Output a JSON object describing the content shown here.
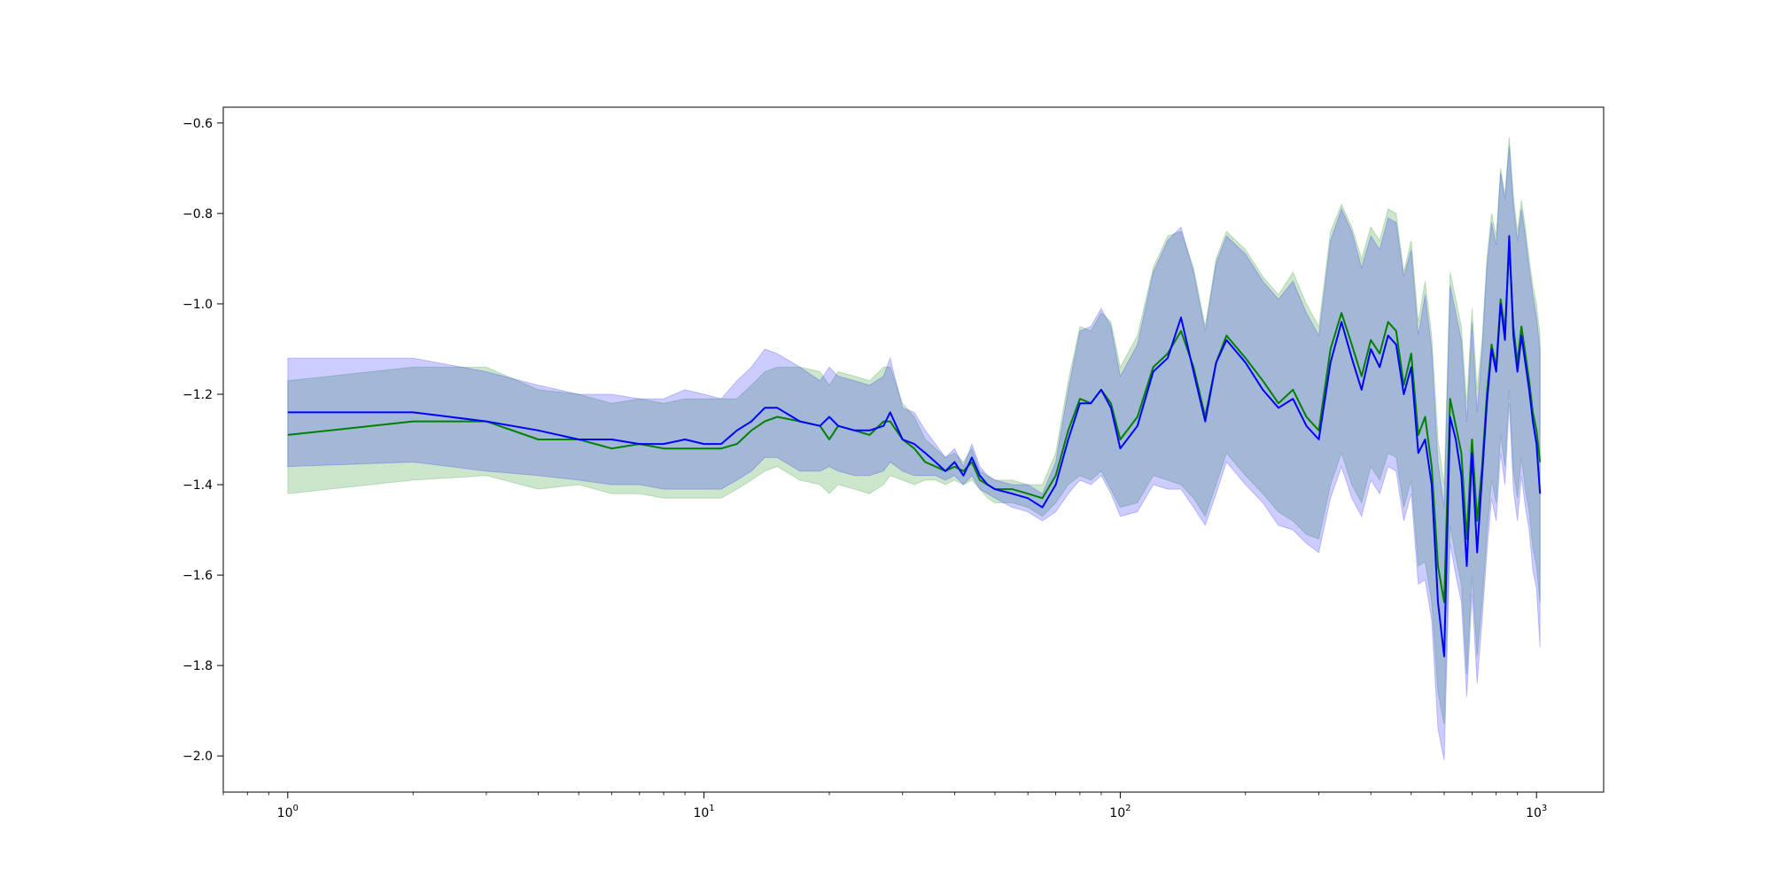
{
  "colors": {
    "series_green": "#008000",
    "series_blue": "#0000ff",
    "band_green": "rgba(0,128,0,0.2)",
    "band_blue": "rgba(0,0,255,0.2)",
    "axes": "#000000",
    "background": "#ffffff"
  },
  "chart_data": {
    "type": "line",
    "title": "",
    "xlabel": "",
    "ylabel": "",
    "xscale": "log",
    "xlim": [
      0.7,
      1450
    ],
    "ylim": [
      -2.08,
      -0.565
    ],
    "grid": false,
    "legend": "none",
    "xticks": [
      {
        "value": 1,
        "base": "10",
        "exp": "0"
      },
      {
        "value": 10,
        "base": "10",
        "exp": "1"
      },
      {
        "value": 100,
        "base": "10",
        "exp": "2"
      },
      {
        "value": 1000,
        "base": "10",
        "exp": "3"
      }
    ],
    "yticks": [
      {
        "value": -0.6,
        "label": "−0.6"
      },
      {
        "value": -0.8,
        "label": "−0.8"
      },
      {
        "value": -1.0,
        "label": "−1.0"
      },
      {
        "value": -1.2,
        "label": "−1.2"
      },
      {
        "value": -1.4,
        "label": "−1.4"
      },
      {
        "value": -1.6,
        "label": "−1.6"
      },
      {
        "value": -1.8,
        "label": "−1.8"
      },
      {
        "value": -2.0,
        "label": "−2.0"
      }
    ],
    "series": [
      {
        "color_key": "series_green",
        "band_key": "band_green",
        "x": [
          1,
          2,
          3,
          4,
          5,
          6,
          7,
          8,
          9,
          10,
          11,
          12,
          13,
          14,
          15,
          17,
          19,
          20,
          21,
          23,
          25,
          27,
          28,
          30,
          32,
          34,
          36,
          38,
          40,
          42,
          44,
          46,
          48,
          50,
          55,
          60,
          65,
          70,
          75,
          80,
          85,
          90,
          95,
          100,
          110,
          120,
          130,
          140,
          150,
          160,
          170,
          180,
          200,
          220,
          240,
          260,
          280,
          300,
          320,
          340,
          360,
          380,
          400,
          420,
          440,
          460,
          480,
          500,
          520,
          540,
          560,
          580,
          600,
          620,
          640,
          660,
          680,
          700,
          720,
          740,
          760,
          780,
          800,
          820,
          840,
          860,
          880,
          900,
          920,
          940,
          960,
          980,
          1000,
          1020
        ],
        "y": [
          -1.29,
          -1.26,
          -1.26,
          -1.3,
          -1.3,
          -1.32,
          -1.31,
          -1.32,
          -1.32,
          -1.32,
          -1.32,
          -1.31,
          -1.28,
          -1.26,
          -1.25,
          -1.26,
          -1.27,
          -1.3,
          -1.27,
          -1.28,
          -1.29,
          -1.26,
          -1.26,
          -1.3,
          -1.32,
          -1.35,
          -1.36,
          -1.37,
          -1.36,
          -1.37,
          -1.35,
          -1.39,
          -1.4,
          -1.41,
          -1.41,
          -1.42,
          -1.43,
          -1.38,
          -1.28,
          -1.21,
          -1.22,
          -1.19,
          -1.22,
          -1.3,
          -1.25,
          -1.14,
          -1.11,
          -1.06,
          -1.14,
          -1.25,
          -1.13,
          -1.07,
          -1.12,
          -1.17,
          -1.22,
          -1.19,
          -1.25,
          -1.28,
          -1.1,
          -1.02,
          -1.09,
          -1.16,
          -1.08,
          -1.11,
          -1.04,
          -1.06,
          -1.18,
          -1.11,
          -1.29,
          -1.25,
          -1.36,
          -1.58,
          -1.66,
          -1.21,
          -1.27,
          -1.33,
          -1.52,
          -1.3,
          -1.48,
          -1.36,
          -1.2,
          -1.09,
          -1.14,
          -0.99,
          -1.06,
          -0.87,
          -1.05,
          -1.13,
          -1.05,
          -1.11,
          -1.17,
          -1.24,
          -1.28,
          -1.35
        ],
        "lower": [
          -1.42,
          -1.39,
          -1.38,
          -1.41,
          -1.4,
          -1.42,
          -1.42,
          -1.43,
          -1.43,
          -1.43,
          -1.43,
          -1.41,
          -1.39,
          -1.37,
          -1.36,
          -1.39,
          -1.4,
          -1.42,
          -1.4,
          -1.41,
          -1.42,
          -1.4,
          -1.38,
          -1.39,
          -1.4,
          -1.39,
          -1.39,
          -1.4,
          -1.39,
          -1.4,
          -1.39,
          -1.41,
          -1.43,
          -1.44,
          -1.44,
          -1.45,
          -1.47,
          -1.44,
          -1.4,
          -1.38,
          -1.39,
          -1.37,
          -1.41,
          -1.45,
          -1.44,
          -1.38,
          -1.39,
          -1.4,
          -1.43,
          -1.47,
          -1.4,
          -1.33,
          -1.38,
          -1.42,
          -1.46,
          -1.48,
          -1.51,
          -1.52,
          -1.4,
          -1.33,
          -1.4,
          -1.44,
          -1.36,
          -1.39,
          -1.33,
          -1.34,
          -1.45,
          -1.39,
          -1.58,
          -1.57,
          -1.66,
          -1.86,
          -1.93,
          -1.49,
          -1.56,
          -1.62,
          -1.82,
          -1.6,
          -1.78,
          -1.66,
          -1.51,
          -1.39,
          -1.44,
          -1.29,
          -1.36,
          -1.19,
          -1.37,
          -1.43,
          -1.34,
          -1.41,
          -1.46,
          -1.54,
          -1.58,
          -1.66
        ],
        "upper": [
          -1.17,
          -1.14,
          -1.14,
          -1.19,
          -1.2,
          -1.22,
          -1.21,
          -1.22,
          -1.21,
          -1.21,
          -1.21,
          -1.21,
          -1.18,
          -1.15,
          -1.14,
          -1.14,
          -1.15,
          -1.18,
          -1.15,
          -1.16,
          -1.17,
          -1.14,
          -1.14,
          -1.22,
          -1.25,
          -1.3,
          -1.32,
          -1.34,
          -1.33,
          -1.35,
          -1.32,
          -1.37,
          -1.38,
          -1.39,
          -1.39,
          -1.4,
          -1.4,
          -1.33,
          -1.17,
          -1.05,
          -1.06,
          -1.02,
          -1.04,
          -1.14,
          -1.07,
          -0.92,
          -0.85,
          -0.84,
          -0.92,
          -1.05,
          -0.9,
          -0.84,
          -0.88,
          -0.94,
          -0.98,
          -0.93,
          -1.0,
          -1.05,
          -0.84,
          -0.78,
          -0.83,
          -0.9,
          -0.83,
          -0.86,
          -0.79,
          -0.8,
          -0.93,
          -0.86,
          -1.04,
          -0.95,
          -1.07,
          -1.3,
          -1.4,
          -0.93,
          -0.99,
          -1.05,
          -1.22,
          -1.01,
          -1.19,
          -1.08,
          -0.9,
          -0.8,
          -0.85,
          -0.7,
          -0.76,
          -0.63,
          -0.76,
          -0.84,
          -0.77,
          -0.83,
          -0.9,
          -0.96,
          -1.0,
          -1.07
        ]
      },
      {
        "color_key": "series_blue",
        "band_key": "band_blue",
        "x": [
          1,
          2,
          3,
          4,
          5,
          6,
          7,
          8,
          9,
          10,
          11,
          12,
          13,
          14,
          15,
          17,
          19,
          20,
          21,
          23,
          25,
          27,
          28,
          30,
          32,
          34,
          36,
          38,
          40,
          42,
          44,
          46,
          48,
          50,
          55,
          60,
          65,
          70,
          75,
          80,
          85,
          90,
          95,
          100,
          110,
          120,
          130,
          140,
          150,
          160,
          170,
          180,
          200,
          220,
          240,
          260,
          280,
          300,
          320,
          340,
          360,
          380,
          400,
          420,
          440,
          460,
          480,
          500,
          520,
          540,
          560,
          580,
          600,
          620,
          640,
          660,
          680,
          700,
          720,
          740,
          760,
          780,
          800,
          820,
          840,
          860,
          880,
          900,
          920,
          940,
          960,
          980,
          1000,
          1020
        ],
        "y": [
          -1.24,
          -1.24,
          -1.26,
          -1.28,
          -1.3,
          -1.3,
          -1.31,
          -1.31,
          -1.3,
          -1.31,
          -1.31,
          -1.28,
          -1.26,
          -1.23,
          -1.23,
          -1.26,
          -1.27,
          -1.25,
          -1.27,
          -1.28,
          -1.28,
          -1.27,
          -1.24,
          -1.3,
          -1.31,
          -1.33,
          -1.35,
          -1.37,
          -1.35,
          -1.38,
          -1.34,
          -1.38,
          -1.4,
          -1.41,
          -1.42,
          -1.43,
          -1.45,
          -1.4,
          -1.3,
          -1.22,
          -1.22,
          -1.19,
          -1.23,
          -1.32,
          -1.27,
          -1.15,
          -1.12,
          -1.03,
          -1.15,
          -1.26,
          -1.13,
          -1.08,
          -1.13,
          -1.19,
          -1.23,
          -1.21,
          -1.27,
          -1.3,
          -1.13,
          -1.04,
          -1.12,
          -1.19,
          -1.1,
          -1.14,
          -1.07,
          -1.09,
          -1.2,
          -1.14,
          -1.33,
          -1.3,
          -1.4,
          -1.66,
          -1.78,
          -1.25,
          -1.3,
          -1.38,
          -1.58,
          -1.33,
          -1.55,
          -1.38,
          -1.22,
          -1.1,
          -1.15,
          -1.0,
          -1.08,
          -0.85,
          -1.07,
          -1.15,
          -1.07,
          -1.13,
          -1.19,
          -1.26,
          -1.31,
          -1.42
        ],
        "lower": [
          -1.36,
          -1.35,
          -1.37,
          -1.38,
          -1.39,
          -1.4,
          -1.4,
          -1.41,
          -1.41,
          -1.41,
          -1.41,
          -1.39,
          -1.37,
          -1.34,
          -1.34,
          -1.37,
          -1.37,
          -1.36,
          -1.37,
          -1.38,
          -1.38,
          -1.37,
          -1.35,
          -1.37,
          -1.38,
          -1.38,
          -1.38,
          -1.39,
          -1.38,
          -1.4,
          -1.38,
          -1.41,
          -1.42,
          -1.43,
          -1.45,
          -1.46,
          -1.48,
          -1.46,
          -1.42,
          -1.39,
          -1.4,
          -1.38,
          -1.42,
          -1.47,
          -1.46,
          -1.4,
          -1.41,
          -1.41,
          -1.45,
          -1.49,
          -1.42,
          -1.35,
          -1.4,
          -1.44,
          -1.49,
          -1.5,
          -1.53,
          -1.55,
          -1.43,
          -1.36,
          -1.43,
          -1.47,
          -1.39,
          -1.42,
          -1.36,
          -1.37,
          -1.48,
          -1.42,
          -1.62,
          -1.61,
          -1.7,
          -1.94,
          -2.01,
          -1.53,
          -1.6,
          -1.66,
          -1.87,
          -1.64,
          -1.84,
          -1.7,
          -1.55,
          -1.43,
          -1.48,
          -1.33,
          -1.4,
          -1.22,
          -1.41,
          -1.48,
          -1.38,
          -1.45,
          -1.5,
          -1.59,
          -1.63,
          -1.76
        ],
        "upper": [
          -1.12,
          -1.12,
          -1.15,
          -1.18,
          -1.2,
          -1.2,
          -1.21,
          -1.21,
          -1.19,
          -1.2,
          -1.21,
          -1.17,
          -1.14,
          -1.1,
          -1.11,
          -1.14,
          -1.17,
          -1.14,
          -1.16,
          -1.17,
          -1.18,
          -1.16,
          -1.12,
          -1.23,
          -1.24,
          -1.28,
          -1.31,
          -1.34,
          -1.32,
          -1.36,
          -1.31,
          -1.36,
          -1.38,
          -1.39,
          -1.4,
          -1.4,
          -1.42,
          -1.35,
          -1.19,
          -1.06,
          -1.05,
          -1.01,
          -1.05,
          -1.16,
          -1.09,
          -0.93,
          -0.86,
          -0.83,
          -0.93,
          -1.06,
          -0.91,
          -0.85,
          -0.89,
          -0.95,
          -0.99,
          -0.95,
          -1.02,
          -1.07,
          -0.86,
          -0.79,
          -0.84,
          -0.92,
          -0.85,
          -0.88,
          -0.81,
          -0.82,
          -0.94,
          -0.88,
          -1.07,
          -0.98,
          -1.1,
          -1.35,
          -1.45,
          -0.96,
          -1.02,
          -1.08,
          -1.26,
          -1.04,
          -1.24,
          -1.1,
          -0.92,
          -0.82,
          -0.87,
          -0.71,
          -0.77,
          -0.65,
          -0.78,
          -0.86,
          -0.79,
          -0.85,
          -0.92,
          -0.98,
          -1.03,
          -1.1
        ]
      }
    ]
  }
}
